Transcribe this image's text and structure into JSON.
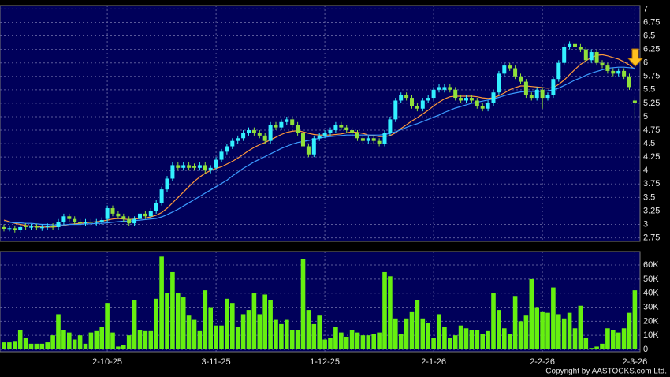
{
  "chart_data": [
    {
      "type": "candlestick",
      "categories": [
        null,
        null,
        null,
        null,
        null,
        null,
        null,
        null,
        null,
        null,
        null,
        null,
        null,
        null,
        null,
        null,
        null,
        null,
        null,
        "2-10-25",
        null,
        null,
        null,
        null,
        null,
        null,
        null,
        null,
        null,
        null,
        null,
        null,
        null,
        null,
        null,
        null,
        null,
        null,
        null,
        "3-11-25",
        null,
        null,
        null,
        null,
        null,
        null,
        null,
        null,
        null,
        null,
        null,
        null,
        null,
        null,
        null,
        null,
        null,
        null,
        null,
        "1-12-25",
        null,
        null,
        null,
        null,
        null,
        null,
        null,
        null,
        null,
        null,
        null,
        null,
        null,
        null,
        null,
        null,
        null,
        null,
        null,
        "2-1-26",
        null,
        null,
        null,
        null,
        null,
        null,
        null,
        null,
        null,
        null,
        null,
        null,
        null,
        null,
        null,
        null,
        null,
        null,
        null,
        "2-2-26",
        null,
        null,
        null,
        null,
        null,
        null,
        null,
        null,
        null,
        null,
        null,
        null,
        null,
        null,
        null,
        null,
        "2-3-26"
      ],
      "open": [
        2.95,
        2.92,
        2.93,
        2.9,
        2.97,
        2.94,
        2.96,
        2.93,
        2.95,
        2.97,
        2.95,
        3.05,
        3.15,
        3.1,
        3.05,
        3.02,
        3.05,
        3.03,
        3.05,
        3.1,
        3.3,
        3.2,
        3.15,
        3.1,
        3.02,
        3.1,
        3.2,
        3.15,
        3.25,
        3.4,
        3.65,
        3.85,
        4.1,
        4.05,
        4.1,
        4.08,
        4.05,
        4.1,
        4.0,
        4.05,
        4.2,
        4.35,
        4.45,
        4.55,
        4.6,
        4.7,
        4.75,
        4.7,
        4.65,
        4.55,
        4.85,
        4.8,
        4.9,
        4.95,
        4.85,
        4.7,
        4.45,
        4.3,
        4.6,
        4.65,
        4.7,
        4.75,
        4.85,
        4.8,
        4.75,
        4.7,
        4.6,
        4.55,
        4.6,
        4.55,
        4.5,
        4.7,
        4.95,
        5.3,
        5.4,
        5.35,
        5.2,
        5.15,
        5.3,
        5.35,
        5.5,
        5.5,
        5.55,
        5.5,
        5.35,
        5.3,
        5.35,
        5.3,
        5.2,
        5.15,
        5.25,
        5.45,
        5.8,
        5.95,
        5.9,
        5.75,
        5.65,
        5.4,
        5.35,
        5.5,
        5.35,
        5.4,
        5.7,
        6.0,
        6.3,
        6.35,
        6.3,
        6.25,
        6.05,
        6.2,
        6.0,
        5.95,
        5.85,
        5.8,
        5.85,
        5.75,
        5.3
      ],
      "high": [
        3.0,
        2.98,
        2.98,
        3.0,
        3.02,
        3.01,
        3.01,
        3.0,
        3.02,
        3.02,
        3.1,
        3.2,
        3.2,
        3.15,
        3.1,
        3.1,
        3.1,
        3.1,
        3.13,
        3.35,
        3.35,
        3.25,
        3.2,
        3.15,
        3.15,
        3.25,
        3.25,
        3.3,
        3.45,
        3.7,
        3.9,
        4.15,
        4.15,
        4.15,
        4.15,
        4.13,
        4.15,
        4.15,
        4.1,
        4.25,
        4.4,
        4.5,
        4.6,
        4.65,
        4.75,
        4.8,
        4.8,
        4.75,
        4.7,
        4.9,
        4.9,
        4.95,
        5.0,
        5.0,
        4.9,
        4.75,
        4.5,
        4.65,
        4.7,
        4.75,
        4.8,
        4.9,
        4.9,
        4.85,
        4.8,
        4.75,
        4.65,
        4.65,
        4.65,
        4.6,
        4.75,
        5.0,
        5.35,
        5.45,
        5.45,
        5.4,
        5.25,
        5.35,
        5.4,
        5.55,
        5.6,
        5.6,
        5.6,
        5.55,
        5.4,
        5.4,
        5.4,
        5.35,
        5.25,
        5.3,
        5.5,
        5.85,
        6.0,
        6.0,
        5.95,
        5.8,
        5.7,
        5.45,
        5.55,
        5.55,
        5.45,
        5.75,
        6.05,
        6.35,
        6.4,
        6.4,
        6.35,
        6.3,
        6.25,
        6.25,
        6.05,
        6.0,
        5.9,
        5.9,
        5.9,
        5.8,
        5.35
      ],
      "low": [
        2.87,
        2.87,
        2.85,
        2.85,
        2.9,
        2.89,
        2.89,
        2.88,
        2.9,
        2.9,
        2.9,
        3.0,
        3.05,
        3.0,
        2.97,
        2.97,
        2.98,
        2.98,
        3.0,
        3.05,
        3.15,
        3.1,
        3.05,
        2.97,
        2.97,
        3.05,
        3.1,
        3.1,
        3.2,
        3.35,
        3.6,
        3.8,
        4.0,
        4.0,
        4.0,
        4.0,
        4.0,
        3.95,
        3.95,
        4.0,
        4.15,
        4.3,
        4.4,
        4.5,
        4.55,
        4.65,
        4.65,
        4.6,
        4.5,
        4.5,
        4.75,
        4.75,
        4.85,
        4.8,
        4.65,
        4.2,
        4.25,
        4.25,
        4.55,
        4.6,
        4.65,
        4.7,
        4.75,
        4.7,
        4.65,
        4.55,
        4.5,
        4.5,
        4.5,
        4.45,
        4.45,
        4.65,
        4.9,
        5.25,
        5.3,
        5.15,
        5.1,
        5.1,
        5.25,
        5.3,
        5.45,
        5.45,
        5.45,
        5.3,
        5.25,
        5.25,
        5.25,
        5.15,
        5.1,
        5.1,
        5.2,
        5.4,
        5.75,
        5.85,
        5.7,
        5.6,
        5.35,
        5.3,
        5.3,
        5.15,
        5.3,
        5.35,
        5.65,
        5.95,
        6.25,
        6.25,
        6.2,
        6.0,
        6.0,
        5.95,
        5.9,
        5.8,
        5.75,
        5.75,
        5.7,
        5.5,
        4.95
      ],
      "close": [
        2.92,
        2.93,
        2.9,
        2.95,
        2.95,
        2.96,
        2.94,
        2.95,
        2.97,
        2.95,
        3.05,
        3.15,
        3.1,
        3.05,
        3.02,
        3.05,
        3.03,
        3.05,
        3.08,
        3.3,
        3.2,
        3.15,
        3.1,
        3.02,
        3.1,
        3.2,
        3.15,
        3.25,
        3.4,
        3.65,
        3.85,
        4.1,
        4.05,
        4.1,
        4.05,
        4.05,
        4.1,
        4.0,
        4.05,
        4.2,
        4.35,
        4.45,
        4.55,
        4.6,
        4.7,
        4.75,
        4.7,
        4.65,
        4.55,
        4.85,
        4.8,
        4.9,
        4.95,
        4.85,
        4.7,
        4.45,
        4.3,
        4.6,
        4.65,
        4.7,
        4.75,
        4.85,
        4.8,
        4.75,
        4.7,
        4.6,
        4.55,
        4.6,
        4.55,
        4.5,
        4.7,
        4.95,
        5.3,
        5.4,
        5.35,
        5.2,
        5.15,
        5.3,
        5.35,
        5.5,
        5.55,
        5.55,
        5.5,
        5.35,
        5.3,
        5.35,
        5.3,
        5.2,
        5.15,
        5.25,
        5.45,
        5.8,
        5.95,
        5.9,
        5.75,
        5.65,
        5.4,
        5.35,
        5.5,
        5.35,
        5.4,
        5.7,
        6.0,
        6.3,
        6.35,
        6.3,
        6.25,
        6.05,
        6.2,
        6.0,
        5.95,
        5.85,
        5.8,
        5.85,
        5.75,
        5.55,
        5.25
      ],
      "up_color": "#33f0ff",
      "down_color": "#8fe03a",
      "lines": [
        {
          "color": "#ff9a3c",
          "values": [
            3.08,
            3.05,
            3.02,
            3.0,
            2.98,
            2.97,
            2.96,
            2.95,
            2.95,
            2.95,
            2.96,
            2.98,
            3.0,
            3.01,
            3.02,
            3.03,
            3.04,
            3.05,
            3.06,
            3.08,
            3.1,
            3.11,
            3.1,
            3.09,
            3.1,
            3.11,
            3.12,
            3.14,
            3.17,
            3.22,
            3.3,
            3.4,
            3.5,
            3.6,
            3.7,
            3.8,
            3.88,
            3.95,
            4.0,
            4.04,
            4.07,
            4.12,
            4.17,
            4.23,
            4.3,
            4.37,
            4.43,
            4.48,
            4.52,
            4.57,
            4.62,
            4.67,
            4.71,
            4.73,
            4.74,
            4.72,
            4.69,
            4.67,
            4.66,
            4.66,
            4.66,
            4.67,
            4.68,
            4.7,
            4.72,
            4.71,
            4.69,
            4.66,
            4.65,
            4.63,
            4.63,
            4.65,
            4.7,
            4.78,
            4.85,
            4.92,
            4.98,
            5.05,
            5.12,
            5.2,
            5.27,
            5.33,
            5.37,
            5.38,
            5.38,
            5.38,
            5.38,
            5.37,
            5.35,
            5.34,
            5.35,
            5.39,
            5.44,
            5.5,
            5.54,
            5.57,
            5.57,
            5.56,
            5.55,
            5.54,
            5.53,
            5.54,
            5.6,
            5.68,
            5.78,
            5.88,
            5.97,
            6.04,
            6.1,
            6.14,
            6.15,
            6.13,
            6.1,
            6.07,
            6.02,
            5.96,
            5.88
          ]
        },
        {
          "color": "#3c9cff",
          "values": [
            3.05,
            3.04,
            3.03,
            3.03,
            3.02,
            3.02,
            3.01,
            3.0,
            3.0,
            2.99,
            2.99,
            2.99,
            3.0,
            3.0,
            3.0,
            3.01,
            3.01,
            3.02,
            3.02,
            3.03,
            3.04,
            3.05,
            3.06,
            3.06,
            3.07,
            3.08,
            3.09,
            3.1,
            3.11,
            3.14,
            3.18,
            3.23,
            3.28,
            3.34,
            3.4,
            3.46,
            3.52,
            3.58,
            3.64,
            3.7,
            3.76,
            3.82,
            3.9,
            3.97,
            4.04,
            4.1,
            4.16,
            4.21,
            4.26,
            4.31,
            4.36,
            4.41,
            4.45,
            4.49,
            4.52,
            4.54,
            4.56,
            4.58,
            4.6,
            4.62,
            4.63,
            4.64,
            4.65,
            4.66,
            4.66,
            4.66,
            4.66,
            4.66,
            4.66,
            4.66,
            4.67,
            4.69,
            4.72,
            4.76,
            4.8,
            4.84,
            4.87,
            4.91,
            4.95,
            4.99,
            5.03,
            5.08,
            5.12,
            5.16,
            5.19,
            5.22,
            5.25,
            5.27,
            5.29,
            5.31,
            5.33,
            5.36,
            5.39,
            5.42,
            5.44,
            5.46,
            5.47,
            5.47,
            5.47,
            5.47,
            5.48,
            5.5,
            5.53,
            5.58,
            5.63,
            5.68,
            5.72,
            5.77,
            5.81,
            5.84,
            5.87,
            5.9,
            5.91,
            5.92,
            5.92,
            5.91,
            5.9
          ]
        }
      ],
      "ylim": [
        2.7,
        7.05
      ],
      "yticks": [
        2.75,
        3,
        3.25,
        3.5,
        3.75,
        4,
        4.25,
        4.5,
        4.75,
        5,
        5.25,
        5.5,
        5.75,
        6,
        6.25,
        6.5,
        6.75,
        7
      ],
      "grid": true
    },
    {
      "type": "bar",
      "values": [
        5000,
        5000,
        6000,
        14000,
        8000,
        4000,
        4000,
        4000,
        5000,
        10000,
        25000,
        14000,
        12000,
        7000,
        10000,
        4000,
        12000,
        13000,
        16000,
        33000,
        12000,
        2000,
        3000,
        10000,
        35000,
        14000,
        13000,
        13000,
        36000,
        66000,
        40000,
        55000,
        40000,
        37000,
        24000,
        21000,
        13000,
        42000,
        30000,
        17000,
        17000,
        36000,
        33000,
        16000,
        25000,
        28000,
        40000,
        25000,
        39000,
        35000,
        21000,
        18000,
        21000,
        14000,
        14000,
        64000,
        28000,
        18000,
        24000,
        7000,
        8000,
        16000,
        12000,
        9000,
        14000,
        12000,
        10000,
        10000,
        11000,
        12000,
        55000,
        52000,
        22000,
        11000,
        22000,
        27000,
        35000,
        22000,
        19000,
        8000,
        25000,
        16000,
        8000,
        10000,
        17000,
        15000,
        14000,
        14000,
        11000,
        13000,
        40000,
        28000,
        15000,
        11000,
        38000,
        20000,
        24000,
        50000,
        30000,
        27000,
        26000,
        44000,
        25000,
        22000,
        26000,
        15000,
        31000,
        8000,
        1000,
        2000,
        4000,
        15000,
        14000,
        12000,
        15000,
        26000,
        42000
      ],
      "color": "#66f010",
      "ylim": [
        0,
        69000
      ],
      "yticks": [
        0,
        {
          "value": 10000,
          "label": "10K"
        },
        {
          "value": 20000,
          "label": "20K"
        },
        {
          "value": 30000,
          "label": "30K"
        },
        {
          "value": 40000,
          "label": "40K"
        },
        {
          "value": 50000,
          "label": "50K"
        },
        {
          "value": 60000,
          "label": "60K"
        }
      ],
      "grid": true
    }
  ],
  "copyright": "Copyright by AASTOCKS.com Ltd."
}
